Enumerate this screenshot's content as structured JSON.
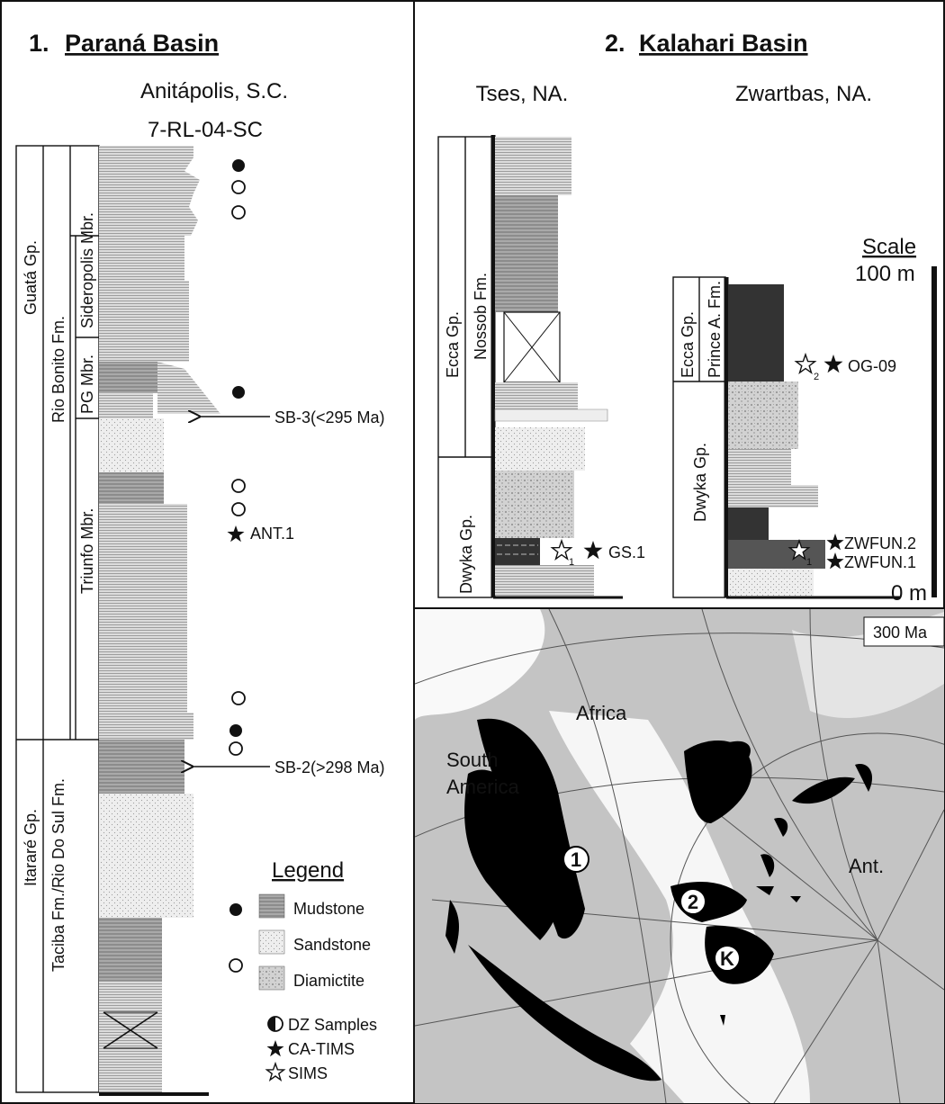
{
  "panel1": {
    "number": "1.",
    "title": "Paraná Basin",
    "location": "Anitápolis, S.C.",
    "core_id": "7-RL-04-SC",
    "group_upper": "Guatá Gp.",
    "group_lower": "Itararé Gp.",
    "formation_upper": "Rio Bonito Fm.",
    "formation_lower": "Taciba Fm./Rio Do Sul Fm.",
    "member_top": "Sideropolis Mbr.",
    "member_mid": "PG Mbr.",
    "member_low": "Triunfo Mbr.",
    "sample_upper": "SB-3(<295 Ma)",
    "sample_lower": "SB-2(>298 Ma)",
    "ant_label": "ANT.1"
  },
  "legend": {
    "title": "Legend",
    "mudstone": "Mudstone",
    "sandstone": "Sandstone",
    "diamictite": "Diamictite",
    "dz": "DZ Samples",
    "catims": "CA-TIMS",
    "sims": "SIMS"
  },
  "panel2": {
    "number": "2.",
    "title": "Kalahari Basin",
    "tses": {
      "name": "Tses, NA.",
      "group_upper": "Ecca Gp.",
      "formation_upper": "Nossob Fm.",
      "group_lower": "Dwyka Gp.",
      "sample": "GS.1",
      "sub": "1"
    },
    "zwartbas": {
      "name": "Zwartbas, NA.",
      "group_upper": "Ecca Gp.",
      "formation_upper": "Prince A. Fm.",
      "group_lower": "Dwyka Gp.",
      "sample_upper": "OG-09",
      "sub_upper": "2",
      "sample_a": "ZWFUN.2",
      "sample_b": "ZWFUN.1",
      "sub_lower": "1"
    },
    "scale": {
      "title": "Scale",
      "top": "100 m",
      "bottom": "0 m"
    }
  },
  "map": {
    "age": "300 Ma",
    "africa": "Africa",
    "south_america_1": "South",
    "south_america_2": "America",
    "antarctica": "Ant.",
    "marker1": "1",
    "marker2": "2",
    "markerK": "K"
  },
  "colors": {
    "mudstone": "#9a9a9a",
    "sandstone": "#e6e6e6",
    "diamictite": "#cfcfcf",
    "dark": "#2f2f2f",
    "map_land": "#c4c4c4",
    "map_basin": "#000000"
  }
}
